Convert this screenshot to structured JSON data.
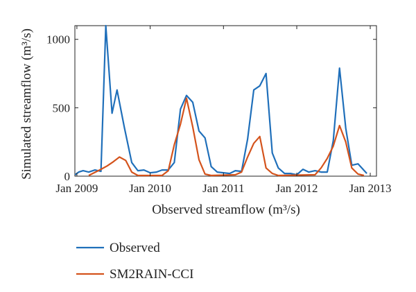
{
  "chart_data": {
    "type": "line",
    "title": "",
    "xlabel": "Observed streamflow (m³/s)",
    "ylabel": "Simulated streamflow (m³/s)",
    "xlim": [
      "2008-12-22",
      "2013-02-01"
    ],
    "ylim": [
      0,
      1100
    ],
    "yticks": [
      0,
      500,
      1000
    ],
    "xticks": [
      {
        "date": "2009-01-01",
        "label": "Jan 2009"
      },
      {
        "date": "2010-01-01",
        "label": "Jan 2010"
      },
      {
        "date": "2011-01-01",
        "label": "Jan 2011"
      },
      {
        "date": "2012-01-01",
        "label": "Jan 2012"
      },
      {
        "date": "2013-01-01",
        "label": "Jan 2013"
      }
    ],
    "grid": false,
    "legend": "below",
    "series": [
      {
        "name": "Observed",
        "color": "#1f6fba",
        "points": [
          [
            "2008-12-23",
            10
          ],
          [
            "2009-01-10",
            30
          ],
          [
            "2009-02-01",
            40
          ],
          [
            "2009-03-01",
            30
          ],
          [
            "2009-04-01",
            45
          ],
          [
            "2009-05-01",
            35
          ],
          [
            "2009-05-25",
            1100
          ],
          [
            "2009-06-25",
            460
          ],
          [
            "2009-07-20",
            630
          ],
          [
            "2009-08-25",
            360
          ],
          [
            "2009-10-01",
            100
          ],
          [
            "2009-11-01",
            40
          ],
          [
            "2009-12-01",
            45
          ],
          [
            "2010-01-01",
            25
          ],
          [
            "2010-02-01",
            30
          ],
          [
            "2010-03-01",
            45
          ],
          [
            "2010-04-01",
            45
          ],
          [
            "2010-05-01",
            100
          ],
          [
            "2010-06-01",
            490
          ],
          [
            "2010-07-01",
            590
          ],
          [
            "2010-08-01",
            540
          ],
          [
            "2010-09-01",
            330
          ],
          [
            "2010-10-01",
            280
          ],
          [
            "2010-11-01",
            70
          ],
          [
            "2010-12-01",
            30
          ],
          [
            "2011-01-01",
            25
          ],
          [
            "2011-02-01",
            20
          ],
          [
            "2011-03-01",
            40
          ],
          [
            "2011-04-01",
            35
          ],
          [
            "2011-05-01",
            270
          ],
          [
            "2011-06-01",
            630
          ],
          [
            "2011-07-01",
            660
          ],
          [
            "2011-08-01",
            750
          ],
          [
            "2011-09-01",
            170
          ],
          [
            "2011-10-01",
            60
          ],
          [
            "2011-11-01",
            20
          ],
          [
            "2011-12-01",
            20
          ],
          [
            "2012-01-01",
            10
          ],
          [
            "2012-02-01",
            50
          ],
          [
            "2012-03-01",
            30
          ],
          [
            "2012-04-01",
            40
          ],
          [
            "2012-05-01",
            30
          ],
          [
            "2012-06-01",
            30
          ],
          [
            "2012-07-01",
            260
          ],
          [
            "2012-08-01",
            790
          ],
          [
            "2012-09-01",
            350
          ],
          [
            "2012-10-01",
            80
          ],
          [
            "2012-11-01",
            90
          ],
          [
            "2012-12-15",
            20
          ]
        ]
      },
      {
        "name": "SM2RAIN-CCI",
        "color": "#d4531c",
        "points": [
          [
            "2009-03-01",
            5
          ],
          [
            "2009-05-01",
            50
          ],
          [
            "2009-06-01",
            75
          ],
          [
            "2009-07-01",
            105
          ],
          [
            "2009-08-01",
            140
          ],
          [
            "2009-09-01",
            115
          ],
          [
            "2009-10-01",
            30
          ],
          [
            "2009-11-01",
            5
          ],
          [
            "2010-03-01",
            5
          ],
          [
            "2010-04-01",
            40
          ],
          [
            "2010-05-01",
            230
          ],
          [
            "2010-06-01",
            380
          ],
          [
            "2010-07-01",
            570
          ],
          [
            "2010-08-01",
            360
          ],
          [
            "2010-09-01",
            120
          ],
          [
            "2010-10-01",
            15
          ],
          [
            "2010-11-01",
            5
          ],
          [
            "2011-03-01",
            10
          ],
          [
            "2011-04-01",
            30
          ],
          [
            "2011-05-01",
            140
          ],
          [
            "2011-06-01",
            240
          ],
          [
            "2011-07-01",
            290
          ],
          [
            "2011-08-01",
            60
          ],
          [
            "2011-09-01",
            20
          ],
          [
            "2011-10-01",
            5
          ],
          [
            "2012-04-01",
            10
          ],
          [
            "2012-05-01",
            60
          ],
          [
            "2012-06-01",
            130
          ],
          [
            "2012-07-01",
            220
          ],
          [
            "2012-08-01",
            370
          ],
          [
            "2012-09-01",
            250
          ],
          [
            "2012-10-01",
            60
          ],
          [
            "2012-11-01",
            15
          ],
          [
            "2012-12-01",
            5
          ]
        ]
      }
    ]
  }
}
